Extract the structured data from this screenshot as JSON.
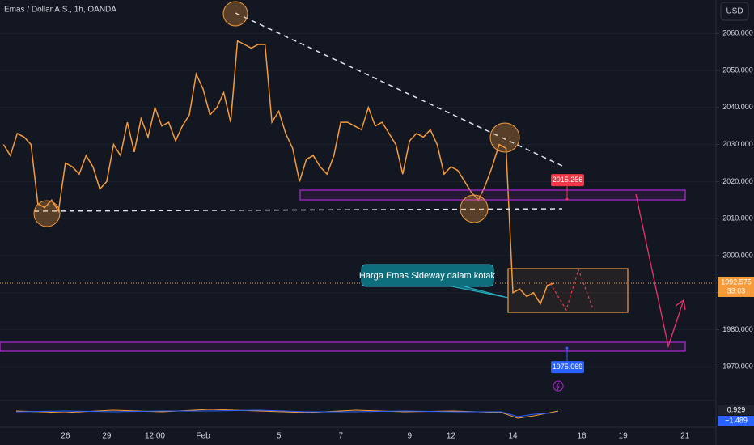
{
  "chart_data": {
    "type": "line",
    "title": "Emas / Dollar A.S., 1h, OANDA",
    "currency": "USD",
    "categories": [
      null,
      null,
      null,
      null,
      null,
      null,
      null,
      null,
      null,
      "26",
      null,
      null,
      null,
      null,
      null,
      "29",
      null,
      null,
      null,
      null,
      null,
      null,
      "12:00",
      null,
      null,
      null,
      null,
      null,
      null,
      "Feb",
      null,
      null,
      null,
      null,
      null,
      null,
      null,
      null,
      null,
      null,
      "5",
      null,
      null,
      null,
      null,
      null,
      null,
      null,
      null,
      "7",
      null,
      null,
      null,
      null,
      null,
      null,
      null,
      null,
      null,
      "9",
      null,
      null,
      null,
      null,
      null,
      "12",
      null,
      null,
      null,
      null,
      null,
      null,
      null,
      null,
      "14",
      null,
      null,
      null,
      null,
      null,
      null,
      null,
      null,
      null,
      "16",
      null,
      null,
      null,
      null,
      null,
      "19",
      null,
      null,
      null,
      null,
      null,
      null,
      null,
      null,
      "21",
      null,
      null,
      null,
      null
    ],
    "series": [
      {
        "color": "#f59b3a",
        "values": [
          2030,
          2027,
          2033,
          2032,
          2030,
          2014,
          2013,
          2015,
          2012,
          2025,
          2024,
          2022,
          2027,
          2024,
          2018,
          2020,
          2030,
          2027,
          2036,
          2028,
          2037,
          2032,
          2040,
          2035,
          2036,
          2031,
          2035,
          2038,
          2049,
          2045,
          2038,
          2040,
          2044,
          2036,
          2058,
          2057,
          2056,
          2057,
          2057,
          2036,
          2039,
          2033,
          2029,
          2020,
          2026,
          2027,
          2024,
          2022,
          2027,
          2036,
          2036,
          2035,
          2034,
          2040,
          2035,
          2036,
          2033,
          2030,
          2022,
          2031,
          2033,
          2032,
          2034,
          2030,
          2022,
          2024,
          2023,
          2020,
          2017,
          2015,
          2019,
          2024,
          2030,
          2029,
          1990,
          1991,
          1989,
          1990,
          1987,
          1992,
          1992.575,
          null,
          null,
          null,
          null,
          null,
          null,
          null,
          null,
          null,
          null,
          null,
          null,
          null,
          null,
          null,
          null,
          null,
          null,
          null,
          null,
          null,
          null,
          null
        ]
      }
    ],
    "ylim": [
      1962,
      2069
    ],
    "yticks": [
      {
        "value": 1970,
        "label": "1970.000"
      },
      {
        "value": 1980,
        "label": "1980.000"
      },
      {
        "value": 1990,
        "label": "1990.000"
      },
      {
        "value": 2000,
        "label": "2000.000"
      },
      {
        "value": 2010,
        "label": "2010.000"
      },
      {
        "value": 2020,
        "label": "2020.000"
      },
      {
        "value": 2030,
        "label": "2030.000"
      },
      {
        "value": 2040,
        "label": "2040.000"
      },
      {
        "value": 2050,
        "label": "2050.000"
      },
      {
        "value": 2060,
        "label": "2060.000"
      }
    ],
    "current_price": 1992.575,
    "countdown": "33:03",
    "price_markers": [
      {
        "value": 2015.256,
        "color": "#f23645"
      },
      {
        "value": 1975.069,
        "color": "#2962ff"
      }
    ],
    "annotation": "Harga Emas Sideway dalam kotak",
    "indicator": {
      "values": [
        0.929,
        -1.489
      ],
      "value_labels": [
        "0.929",
        "−1.489"
      ],
      "colors": [
        "#1e222d",
        "#2962ff"
      ]
    }
  }
}
